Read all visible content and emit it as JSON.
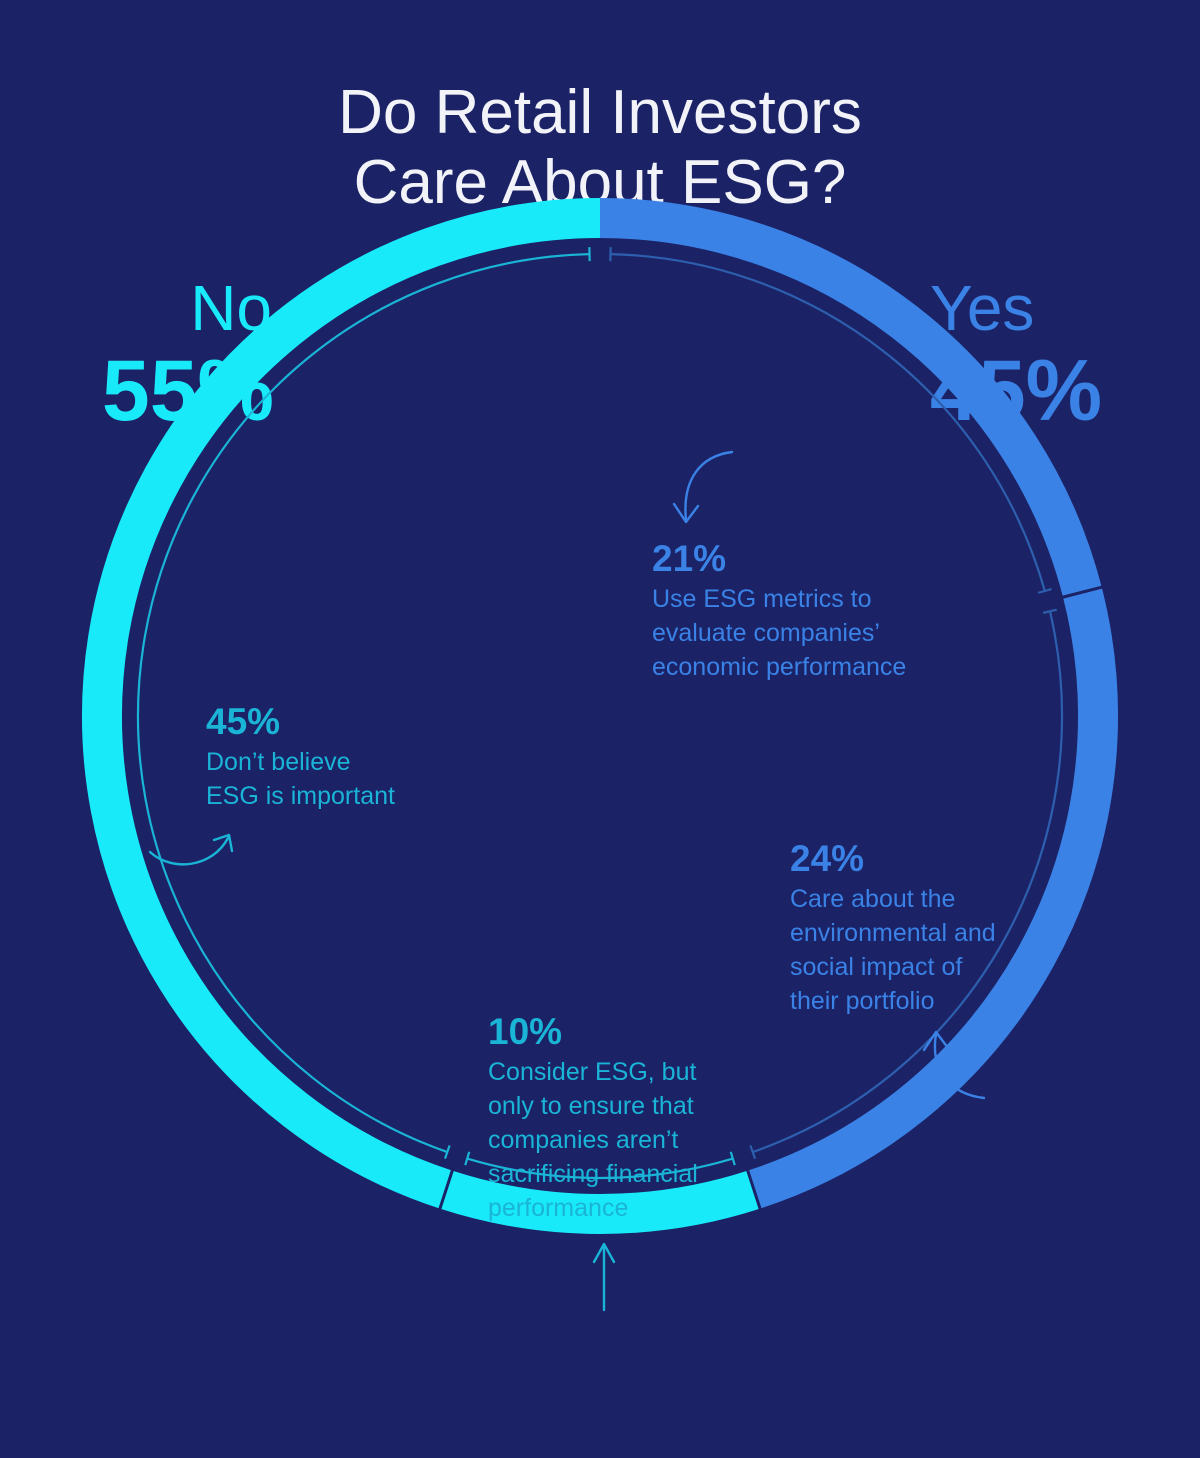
{
  "title_line1": "Do Retail Investors",
  "title_line2": "Care About ESG?",
  "no": {
    "label": "No",
    "percent": "55%"
  },
  "yes": {
    "label": "Yes",
    "percent": "45%"
  },
  "notes": [
    {
      "percent": "21%",
      "text": "Use ESG metrics to\nevaluate companies’\neconomic performance"
    },
    {
      "percent": "24%",
      "text": "Care about the\nenvironmental and\nsocial impact of\ntheir portfolio"
    },
    {
      "percent": "10%",
      "text": "Consider ESG, but\nonly to ensure that\ncompanies aren’t\nsacrificing financial\nperformance"
    },
    {
      "percent": "45%",
      "text": "Don’t believe\nESG is important"
    }
  ],
  "colors": {
    "background": "#1b2266",
    "no": "#19eafa",
    "yes": "#3a82e6",
    "no_text": "#1ab4d6",
    "inner_ring": "#2d5fae",
    "title": "#f2f3f9"
  },
  "chart_data": {
    "type": "pie",
    "title": "Do Retail Investors Care About ESG?",
    "groups": [
      {
        "name": "Yes",
        "value": 45
      },
      {
        "name": "No",
        "value": 55
      }
    ],
    "categories": [
      "Use ESG metrics to evaluate companies’ economic performance",
      "Care about the environmental and social impact of their portfolio",
      "Consider ESG, but only to ensure that companies aren’t sacrificing financial performance",
      "Don’t believe ESG is important"
    ],
    "values": [
      21,
      24,
      10,
      45
    ],
    "group_of": [
      "Yes",
      "Yes",
      "No",
      "No"
    ],
    "start": "top",
    "direction": "clockwise"
  }
}
